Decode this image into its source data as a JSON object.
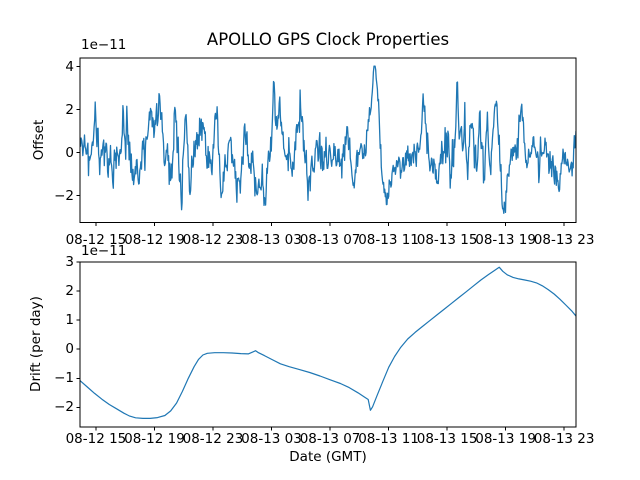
{
  "figure": {
    "title": "APOLLO GPS Clock Properties",
    "xlabel": "Date (GMT)",
    "background": "#ffffff",
    "line_color": "#1f77b4",
    "axis_color": "#000000"
  },
  "chart_data": [
    {
      "type": "line",
      "name": "offset-subplot",
      "ylabel": "Offset",
      "scale_label": "1e−11",
      "unit_scale": 1e-11,
      "legend": "none",
      "grid": false,
      "x_axis": {
        "unit": "hours from axis start (08-12 ~14:00 GMT)",
        "lim_hours": [
          0,
          33.9
        ],
        "tick_hours": [
          1.09,
          5.09,
          9.09,
          13.09,
          17.09,
          21.09,
          25.09,
          29.09,
          33.09
        ],
        "tick_labels": [
          "08-12 15",
          "08-12 19",
          "08-12 23",
          "08-13 03",
          "08-13 07",
          "08-13 11",
          "08-13 15",
          "08-13 19",
          "08-13 23"
        ]
      },
      "y_axis": {
        "lim": [
          -3.25,
          4.4
        ],
        "ticks": [
          -2,
          0,
          2,
          4
        ],
        "tick_labels": [
          "−2",
          "0",
          "2",
          "4"
        ]
      },
      "series": {
        "kind": "noisy",
        "n_points": 880,
        "seed": 42,
        "ar_alpha": 0.25,
        "clamp": [
          -2.82,
          4.02
        ],
        "baseline_anchors": [
          [
            0,
            0.1
          ],
          [
            0.5,
            -0.15
          ],
          [
            0.85,
            0.05
          ],
          [
            1.03,
            2.1
          ],
          [
            1.15,
            0.6
          ],
          [
            1.3,
            -0.2
          ],
          [
            1.6,
            0.25
          ],
          [
            1.9,
            -0.35
          ],
          [
            2.1,
            -0.2
          ],
          [
            2.26,
            -1.1
          ],
          [
            2.45,
            -0.1
          ],
          [
            2.8,
            0.1
          ],
          [
            2.94,
            1.75
          ],
          [
            3.1,
            0.3
          ],
          [
            3.2,
            1.9
          ],
          [
            3.35,
            0.1
          ],
          [
            3.5,
            -0.4
          ],
          [
            3.65,
            -1.5
          ],
          [
            3.85,
            -0.3
          ],
          [
            4.05,
            -1.2
          ],
          [
            4.25,
            -0.1
          ],
          [
            4.6,
            0.3
          ],
          [
            4.85,
            2.35
          ],
          [
            5.05,
            0.7
          ],
          [
            5.25,
            1.7
          ],
          [
            5.45,
            2.2
          ],
          [
            5.65,
            1.0
          ],
          [
            5.8,
            -1.3
          ],
          [
            5.95,
            0.8
          ],
          [
            6.1,
            -0.5
          ],
          [
            6.3,
            -1.3
          ],
          [
            6.5,
            2.0
          ],
          [
            6.7,
            -0.3
          ],
          [
            6.95,
            -1.74
          ],
          [
            7.1,
            0.3
          ],
          [
            7.25,
            1.9
          ],
          [
            7.4,
            -0.4
          ],
          [
            7.52,
            -2.0
          ],
          [
            7.7,
            -0.5
          ],
          [
            8.0,
            0.2
          ],
          [
            8.25,
            0.9
          ],
          [
            8.4,
            1.5
          ],
          [
            8.6,
            -0.1
          ],
          [
            8.9,
            -0.6
          ],
          [
            9.1,
            0.3
          ],
          [
            9.37,
            2.1
          ],
          [
            9.55,
            -0.6
          ],
          [
            9.7,
            -1.8
          ],
          [
            9.9,
            -0.4
          ],
          [
            10.2,
            0.2
          ],
          [
            10.55,
            -0.8
          ],
          [
            10.9,
            -1.7
          ],
          [
            11.1,
            -0.5
          ],
          [
            11.28,
            1.4
          ],
          [
            11.5,
            0
          ],
          [
            11.9,
            -0.6
          ],
          [
            12.1,
            -1.8
          ],
          [
            12.3,
            -0.7
          ],
          [
            12.5,
            -1.1
          ],
          [
            12.65,
            -2.1
          ],
          [
            12.8,
            -0.6
          ],
          [
            13.05,
            0.5
          ],
          [
            13.26,
            2.95
          ],
          [
            13.45,
            0.7
          ],
          [
            13.67,
            2.2
          ],
          [
            13.9,
            -0.1
          ],
          [
            14.3,
            -0.4
          ],
          [
            14.75,
            0.4
          ],
          [
            15.04,
            1.5
          ],
          [
            15.3,
            0
          ],
          [
            15.59,
            -1.6
          ],
          [
            15.85,
            -0.3
          ],
          [
            16.3,
            0.2
          ],
          [
            16.8,
            -0.3
          ],
          [
            17.3,
            0.3
          ],
          [
            17.8,
            -0.4
          ],
          [
            18.1,
            -0.1
          ],
          [
            18.26,
            1.5
          ],
          [
            18.5,
            -0.6
          ],
          [
            18.7,
            -1.4
          ],
          [
            18.9,
            -0.3
          ],
          [
            19.2,
            0.1
          ],
          [
            19.5,
            0.3
          ],
          [
            19.8,
            1.6
          ],
          [
            20.0,
            3.1
          ],
          [
            20.17,
            4.0
          ],
          [
            20.32,
            2.7
          ],
          [
            20.5,
            0.7
          ],
          [
            20.7,
            -1.3
          ],
          [
            20.88,
            -2.3
          ],
          [
            21.05,
            -1.8
          ],
          [
            21.3,
            -1.0
          ],
          [
            21.6,
            -0.6
          ],
          [
            22.0,
            -0.35
          ],
          [
            22.5,
            -0.25
          ],
          [
            23.0,
            -0.1
          ],
          [
            23.3,
            0.3
          ],
          [
            23.45,
            2.75
          ],
          [
            23.62,
            1.5
          ],
          [
            23.8,
            -0.3
          ],
          [
            24.1,
            -0.5
          ],
          [
            24.4,
            -1.45
          ],
          [
            24.65,
            -0.2
          ],
          [
            25.0,
            0.3
          ],
          [
            25.35,
            -0.6
          ],
          [
            25.6,
            0.4
          ],
          [
            25.78,
            2.9
          ],
          [
            25.95,
            0.2
          ],
          [
            26.3,
            1.6
          ],
          [
            26.5,
            -0.9
          ],
          [
            26.8,
            1.9
          ],
          [
            27.05,
            -0.7
          ],
          [
            27.35,
            1.7
          ],
          [
            27.6,
            -1.1
          ],
          [
            27.85,
            1.2
          ],
          [
            28.05,
            -0.9
          ],
          [
            28.3,
            1.9
          ],
          [
            28.5,
            2.4
          ],
          [
            28.62,
            0.4
          ],
          [
            28.75,
            -1.3
          ],
          [
            28.85,
            -2.3
          ],
          [
            29.0,
            -2.72
          ],
          [
            29.12,
            -1.7
          ],
          [
            29.3,
            -0.8
          ],
          [
            29.6,
            -0.15
          ],
          [
            29.9,
            0.4
          ],
          [
            30.2,
            2.5
          ],
          [
            30.4,
            0.2
          ],
          [
            30.65,
            -0.5
          ],
          [
            31.0,
            0.3
          ],
          [
            31.4,
            -0.4
          ],
          [
            31.8,
            0.2
          ],
          [
            32.2,
            -0.4
          ],
          [
            32.5,
            -0.9
          ],
          [
            32.7,
            -1.75
          ],
          [
            32.9,
            -0.55
          ],
          [
            33.15,
            -0.3
          ],
          [
            33.45,
            -0.6
          ],
          [
            33.7,
            -0.35
          ],
          [
            33.9,
            1.1
          ]
        ],
        "sigma_anchors": [
          [
            0,
            0.42
          ],
          [
            3,
            0.45
          ],
          [
            6,
            0.45
          ],
          [
            9,
            0.45
          ],
          [
            12,
            0.5
          ],
          [
            13.5,
            0.5
          ],
          [
            15,
            0.45
          ],
          [
            16.5,
            0.42
          ],
          [
            18,
            0.4
          ],
          [
            19.4,
            0.32
          ],
          [
            20.6,
            0.28
          ],
          [
            21.8,
            0.3
          ],
          [
            22.8,
            0.35
          ],
          [
            23.8,
            0.45
          ],
          [
            25,
            0.55
          ],
          [
            26,
            0.6
          ],
          [
            27,
            0.6
          ],
          [
            28,
            0.5
          ],
          [
            28.7,
            0.3
          ],
          [
            29.5,
            0.35
          ],
          [
            30.1,
            0.4
          ],
          [
            31,
            0.45
          ],
          [
            32,
            0.45
          ],
          [
            33,
            0.4
          ],
          [
            33.9,
            0.3
          ]
        ]
      }
    },
    {
      "type": "line",
      "name": "drift-subplot",
      "ylabel": "Drift (per day)",
      "scale_label": "1e−11",
      "unit_scale": 1e-11,
      "legend": "none",
      "grid": false,
      "x_axis": {
        "unit": "hours from axis start (08-12 ~14:00 GMT)",
        "lim_hours": [
          0,
          33.9
        ],
        "tick_hours": [
          1.09,
          5.09,
          9.09,
          13.09,
          17.09,
          21.09,
          25.09,
          29.09,
          33.09
        ],
        "tick_labels": [
          "08-12 15",
          "08-12 19",
          "08-12 23",
          "08-13 03",
          "08-13 07",
          "08-13 11",
          "08-13 15",
          "08-13 19",
          "08-13 23"
        ]
      },
      "y_axis": {
        "lim": [
          -2.675,
          3.0
        ],
        "ticks": [
          -2,
          -1,
          0,
          1,
          2,
          3
        ],
        "tick_labels": [
          "−2",
          "−1",
          "0",
          "1",
          "2",
          "3"
        ]
      },
      "series": {
        "kind": "points",
        "points": [
          [
            0,
            -1.08
          ],
          [
            0.5,
            -1.3
          ],
          [
            1.0,
            -1.52
          ],
          [
            1.5,
            -1.72
          ],
          [
            2.0,
            -1.9
          ],
          [
            2.5,
            -2.05
          ],
          [
            3.0,
            -2.2
          ],
          [
            3.4,
            -2.3
          ],
          [
            3.8,
            -2.36
          ],
          [
            4.3,
            -2.38
          ],
          [
            4.8,
            -2.38
          ],
          [
            5.3,
            -2.35
          ],
          [
            5.8,
            -2.28
          ],
          [
            6.2,
            -2.12
          ],
          [
            6.6,
            -1.85
          ],
          [
            7.0,
            -1.45
          ],
          [
            7.4,
            -1.0
          ],
          [
            7.8,
            -0.6
          ],
          [
            8.1,
            -0.35
          ],
          [
            8.4,
            -0.2
          ],
          [
            8.7,
            -0.14
          ],
          [
            9.2,
            -0.12
          ],
          [
            9.8,
            -0.12
          ],
          [
            10.4,
            -0.13
          ],
          [
            11.0,
            -0.15
          ],
          [
            11.5,
            -0.16
          ],
          [
            11.8,
            -0.1
          ],
          [
            12.0,
            -0.05
          ],
          [
            12.2,
            -0.12
          ],
          [
            12.6,
            -0.22
          ],
          [
            13.1,
            -0.35
          ],
          [
            13.7,
            -0.5
          ],
          [
            14.3,
            -0.6
          ],
          [
            15.0,
            -0.7
          ],
          [
            15.7,
            -0.8
          ],
          [
            16.4,
            -0.92
          ],
          [
            17.1,
            -1.05
          ],
          [
            17.8,
            -1.18
          ],
          [
            18.4,
            -1.32
          ],
          [
            19.0,
            -1.5
          ],
          [
            19.4,
            -1.63
          ],
          [
            19.7,
            -1.73
          ],
          [
            19.85,
            -2.1
          ],
          [
            20.0,
            -1.98
          ],
          [
            20.3,
            -1.6
          ],
          [
            20.7,
            -1.1
          ],
          [
            21.1,
            -0.62
          ],
          [
            21.5,
            -0.25
          ],
          [
            21.9,
            0.05
          ],
          [
            22.4,
            0.35
          ],
          [
            22.9,
            0.58
          ],
          [
            23.4,
            0.78
          ],
          [
            23.9,
            0.98
          ],
          [
            24.4,
            1.18
          ],
          [
            24.9,
            1.38
          ],
          [
            25.4,
            1.58
          ],
          [
            25.9,
            1.78
          ],
          [
            26.4,
            1.98
          ],
          [
            26.9,
            2.18
          ],
          [
            27.4,
            2.38
          ],
          [
            27.9,
            2.56
          ],
          [
            28.3,
            2.7
          ],
          [
            28.65,
            2.82
          ],
          [
            28.9,
            2.68
          ],
          [
            29.2,
            2.56
          ],
          [
            29.6,
            2.47
          ],
          [
            30.0,
            2.42
          ],
          [
            30.4,
            2.38
          ],
          [
            30.8,
            2.34
          ],
          [
            31.2,
            2.28
          ],
          [
            31.6,
            2.18
          ],
          [
            32.0,
            2.05
          ],
          [
            32.4,
            1.9
          ],
          [
            32.8,
            1.72
          ],
          [
            33.2,
            1.52
          ],
          [
            33.6,
            1.32
          ],
          [
            33.9,
            1.14
          ]
        ]
      }
    }
  ]
}
